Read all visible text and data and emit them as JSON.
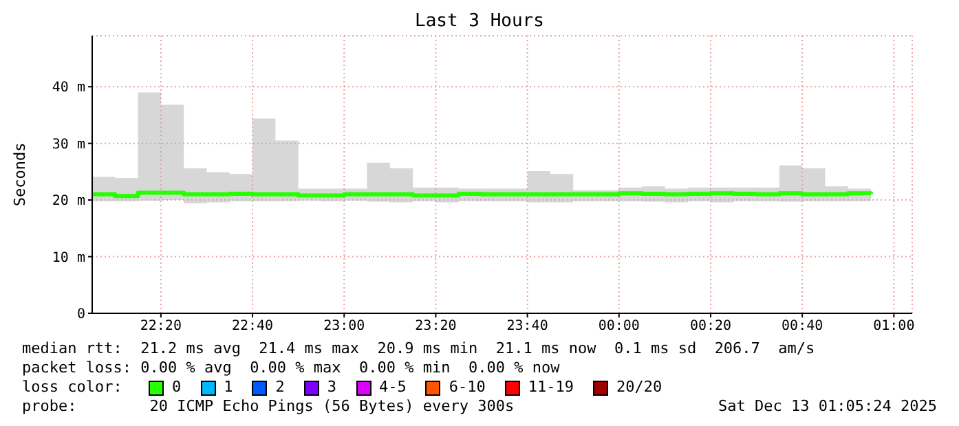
{
  "chart_data": {
    "type": "step",
    "title": "Last 3 Hours",
    "ylabel": "Seconds",
    "legend_title": "loss color:",
    "legend": "bottom",
    "grid": true,
    "x": [
      "2025-12-12T22:05",
      "2025-12-12T22:10",
      "2025-12-12T22:15",
      "2025-12-12T22:20",
      "2025-12-12T22:25",
      "2025-12-12T22:30",
      "2025-12-12T22:35",
      "2025-12-12T22:40",
      "2025-12-12T22:45",
      "2025-12-12T22:50",
      "2025-12-12T22:55",
      "2025-12-12T23:00",
      "2025-12-12T23:05",
      "2025-12-12T23:10",
      "2025-12-12T23:15",
      "2025-12-12T23:20",
      "2025-12-12T23:25",
      "2025-12-12T23:30",
      "2025-12-12T23:35",
      "2025-12-12T23:40",
      "2025-12-12T23:45",
      "2025-12-12T23:50",
      "2025-12-12T23:55",
      "2025-12-13T00:00",
      "2025-12-13T00:05",
      "2025-12-13T00:10",
      "2025-12-13T00:15",
      "2025-12-13T00:20",
      "2025-12-13T00:25",
      "2025-12-13T00:30",
      "2025-12-13T00:35",
      "2025-12-13T00:40",
      "2025-12-13T00:45",
      "2025-12-13T00:50",
      "2025-12-13T00:55"
    ],
    "xlim": [
      "2025-12-12T22:05",
      "2025-12-13T01:04"
    ],
    "xticks": [
      {
        "value": "2025-12-12T22:20",
        "label": "22:20"
      },
      {
        "value": "2025-12-12T22:40",
        "label": "22:40"
      },
      {
        "value": "2025-12-12T23:00",
        "label": "23:00"
      },
      {
        "value": "2025-12-12T23:20",
        "label": "23:20"
      },
      {
        "value": "2025-12-12T23:40",
        "label": "23:40"
      },
      {
        "value": "2025-12-13T00:00",
        "label": "00:00"
      },
      {
        "value": "2025-12-13T00:20",
        "label": "00:20"
      },
      {
        "value": "2025-12-13T00:40",
        "label": "00:40"
      },
      {
        "value": "2025-12-13T01:00",
        "label": "01:00"
      }
    ],
    "ylim": [
      0,
      49
    ],
    "yticks": [
      0,
      {
        "value": 10,
        "label": "10 m"
      },
      {
        "value": 20,
        "label": "20 m"
      },
      {
        "value": 30,
        "label": "30 m"
      },
      {
        "value": 40,
        "label": "40 m"
      }
    ],
    "series": [
      {
        "name": "0",
        "color": "#26ff00",
        "values": [
          21.0,
          20.7,
          21.3,
          21.3,
          21.0,
          21.0,
          21.1,
          21.0,
          21.0,
          20.8,
          20.8,
          21.0,
          21.0,
          21.0,
          20.8,
          20.8,
          21.1,
          21.0,
          21.0,
          21.0,
          21.0,
          21.0,
          21.0,
          21.2,
          21.1,
          21.0,
          21.1,
          21.2,
          21.1,
          21.0,
          21.2,
          21.0,
          21.0,
          21.2,
          21.1
        ],
        "lower": [
          19.8,
          19.8,
          19.9,
          20.0,
          19.4,
          19.6,
          19.8,
          19.8,
          19.8,
          19.9,
          19.8,
          19.9,
          19.7,
          19.6,
          19.8,
          19.6,
          19.8,
          19.8,
          19.8,
          19.6,
          19.6,
          19.8,
          19.8,
          19.8,
          19.7,
          19.6,
          19.8,
          19.6,
          19.8,
          19.8,
          19.7,
          19.8,
          19.8,
          19.8,
          19.8
        ],
        "upper": [
          24.1,
          23.9,
          39.0,
          36.8,
          25.6,
          24.9,
          24.6,
          34.4,
          30.5,
          22.0,
          22.0,
          22.0,
          26.6,
          25.6,
          22.2,
          22.2,
          22.0,
          22.0,
          22.0,
          25.1,
          24.6,
          21.7,
          21.7,
          22.2,
          22.4,
          22.0,
          22.2,
          22.2,
          22.2,
          22.2,
          26.1,
          25.6,
          22.4,
          22.0,
          22.2
        ]
      },
      {
        "name": "1",
        "color": "#00b8ff",
        "values": [
          null,
          null,
          null,
          null,
          null,
          null,
          null,
          null,
          null,
          null,
          null,
          null,
          null,
          null,
          null,
          null,
          null,
          null,
          null,
          null,
          null,
          null,
          null,
          null,
          null,
          null,
          null,
          null,
          null,
          null,
          null,
          null,
          null,
          null,
          null
        ]
      },
      {
        "name": "2",
        "color": "#0059ff",
        "values": [
          null,
          null,
          null,
          null,
          null,
          null,
          null,
          null,
          null,
          null,
          null,
          null,
          null,
          null,
          null,
          null,
          null,
          null,
          null,
          null,
          null,
          null,
          null,
          null,
          null,
          null,
          null,
          null,
          null,
          null,
          null,
          null,
          null,
          null,
          null
        ]
      },
      {
        "name": "3",
        "color": "#7e00ff",
        "values": [
          null,
          null,
          null,
          null,
          null,
          null,
          null,
          null,
          null,
          null,
          null,
          null,
          null,
          null,
          null,
          null,
          null,
          null,
          null,
          null,
          null,
          null,
          null,
          null,
          null,
          null,
          null,
          null,
          null,
          null,
          null,
          null,
          null,
          null,
          null
        ]
      },
      {
        "name": "4-5",
        "color": "#dd00ff",
        "values": [
          null,
          null,
          null,
          null,
          null,
          null,
          null,
          null,
          null,
          null,
          null,
          null,
          null,
          null,
          null,
          null,
          null,
          null,
          null,
          null,
          null,
          null,
          null,
          null,
          null,
          null,
          null,
          null,
          null,
          null,
          null,
          null,
          null,
          null,
          null
        ]
      },
      {
        "name": "6-10",
        "color": "#ff5500",
        "values": [
          null,
          null,
          null,
          null,
          null,
          null,
          null,
          null,
          null,
          null,
          null,
          null,
          null,
          null,
          null,
          null,
          null,
          null,
          null,
          null,
          null,
          null,
          null,
          null,
          null,
          null,
          null,
          null,
          null,
          null,
          null,
          null,
          null,
          null,
          null
        ]
      },
      {
        "name": "11-19",
        "color": "#ff0000",
        "values": [
          null,
          null,
          null,
          null,
          null,
          null,
          null,
          null,
          null,
          null,
          null,
          null,
          null,
          null,
          null,
          null,
          null,
          null,
          null,
          null,
          null,
          null,
          null,
          null,
          null,
          null,
          null,
          null,
          null,
          null,
          null,
          null,
          null,
          null,
          null
        ]
      },
      {
        "name": "20/20",
        "color": "#a10000",
        "values": [
          null,
          null,
          null,
          null,
          null,
          null,
          null,
          null,
          null,
          null,
          null,
          null,
          null,
          null,
          null,
          null,
          null,
          null,
          null,
          null,
          null,
          null,
          null,
          null,
          null,
          null,
          null,
          null,
          null,
          null,
          null,
          null,
          null,
          null,
          null
        ]
      }
    ],
    "annotations": [
      "median rtt:  21.2 ms avg  21.4 ms max  20.9 ms min  21.1 ms now  0.1 ms sd  206.7  am/s",
      "packet loss: 0.00 % avg  0.00 % max  0.00 % min  0.00 % now",
      "probe:        20 ICMP Echo Pings (56 Bytes) every 300s",
      "Sat Dec 13 01:05:24 2025"
    ]
  }
}
